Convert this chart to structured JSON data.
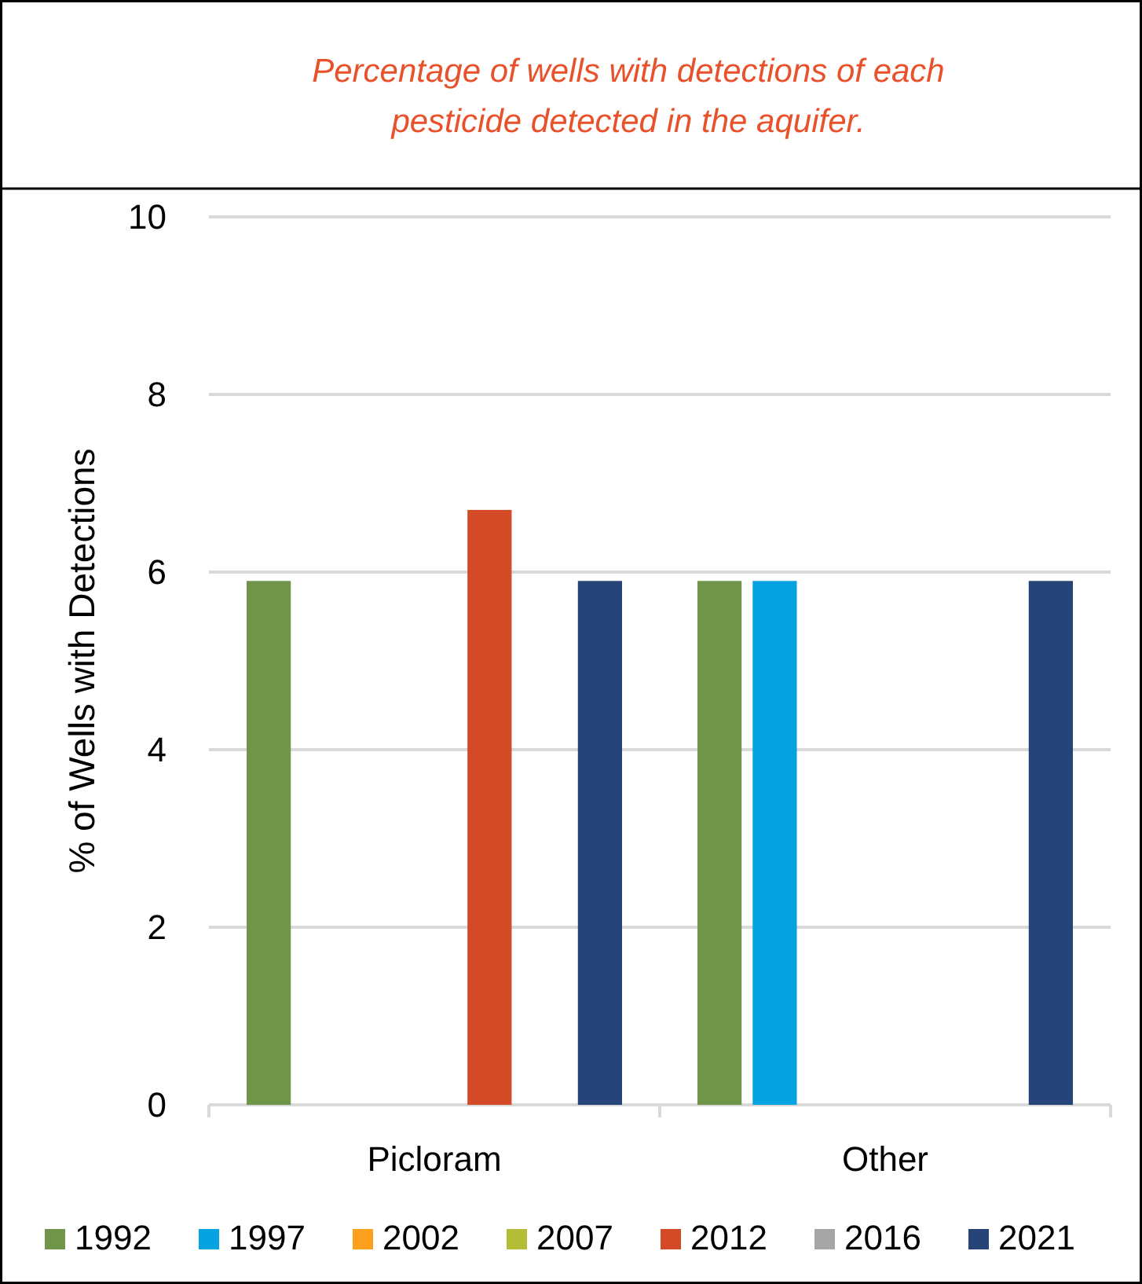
{
  "chart_data": {
    "type": "bar",
    "title": "Percentage of wells with detections of each pesticide detected in the aquifer.",
    "ylabel": "% of Wells with Detections",
    "categories": [
      "Picloram",
      "Other"
    ],
    "ylim": [
      0,
      10
    ],
    "yticks": [
      0,
      2,
      4,
      6,
      8,
      10
    ],
    "grid": "y",
    "legend": "bottom",
    "series": [
      {
        "name": "1992",
        "color": "#70944a",
        "values": [
          5.9,
          5.9
        ]
      },
      {
        "name": "1997",
        "color": "#07a3e0",
        "values": [
          0,
          5.9
        ]
      },
      {
        "name": "2002",
        "color": "#fca01d",
        "values": [
          0,
          0
        ]
      },
      {
        "name": "2007",
        "color": "#b4bd35",
        "values": [
          0,
          0
        ]
      },
      {
        "name": "2012",
        "color": "#d34a27",
        "values": [
          6.7,
          0
        ]
      },
      {
        "name": "2016",
        "color": "#a6a6a6",
        "values": [
          0,
          0
        ]
      },
      {
        "name": "2021",
        "color": "#264478",
        "values": [
          5.9,
          5.9
        ]
      }
    ]
  }
}
